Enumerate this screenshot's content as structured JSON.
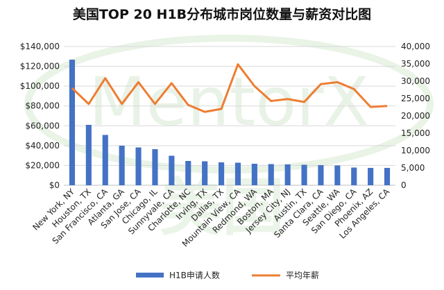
{
  "chart_data": {
    "type": "bar",
    "title": "美国TOP 20 H1B分布城市岗位数量与薪资对比图",
    "categories": [
      "New York, NY",
      "Houston, TX",
      "San Francisco, CA",
      "Atlanta, GA",
      "San Jose, CA",
      "Chicago, IL",
      "Sunnyvale, CA",
      "Charlotte, NC",
      "Irving, TX",
      "Dallas, TX",
      "Mountain View, CA",
      "Redmond, WA",
      "Boston, MA",
      "Jersey City, NJ",
      "Austin, TX",
      "Santa Clara, CA",
      "Seattle, WA",
      "San Diego, CA",
      "Phoenix, AZ",
      "Los Angeles, CA"
    ],
    "series": [
      {
        "name": "H1B申请人数",
        "type": "bar",
        "axis": "right",
        "color": "#4472C4",
        "values": [
          36200,
          17400,
          14500,
          11400,
          10900,
          10400,
          8500,
          7000,
          6900,
          6600,
          6500,
          6200,
          6100,
          6000,
          5900,
          5800,
          5700,
          5100,
          5000,
          5000
        ]
      },
      {
        "name": "平均年薪",
        "type": "line",
        "axis": "left",
        "color": "#ED7D31",
        "values": [
          98000,
          82000,
          108000,
          82000,
          104000,
          82000,
          103000,
          81000,
          74000,
          77000,
          122000,
          100000,
          85000,
          87000,
          84000,
          102000,
          104000,
          97000,
          79000,
          80000
        ]
      }
    ],
    "ylim_left": [
      0,
      140000
    ],
    "ylim_right": [
      0,
      40000
    ],
    "yticks_left": [
      "$0",
      "$20,000",
      "$40,000",
      "$60,000",
      "$80,000",
      "$100,000",
      "$120,000",
      "$140,000"
    ],
    "yticks_right": [
      "0",
      "5,000",
      "10,000",
      "15,000",
      "20,000",
      "25,000",
      "30,000",
      "35,000",
      "40,000"
    ],
    "legend_position": "bottom",
    "grid": true
  },
  "watermark": {
    "text_top": "MentorX",
    "text_bottom": "美国",
    "color": "#cfe4c8"
  }
}
